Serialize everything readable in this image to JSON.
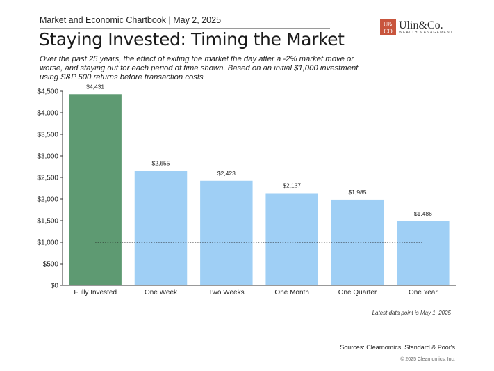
{
  "header": {
    "label": "Market and Economic Chartbook | May 2, 2025",
    "logo_mark_top": "U&",
    "logo_mark_bottom": "CO",
    "logo_name": "Ulin&Co.",
    "logo_sub": "WEALTH MANAGEMENT"
  },
  "chart_data": {
    "type": "bar",
    "title": "Staying Invested: Timing the Market",
    "subtitle": "Over the past 25 years, the effect of exiting the market the day after a -2% market move or worse, and staying out for each period of time shown. Based on an initial $1,000 investment using S&P 500 returns before transaction costs",
    "categories": [
      "Fully Invested",
      "One Week",
      "Two Weeks",
      "One Month",
      "One Quarter",
      "One Year"
    ],
    "values": [
      4431,
      2655,
      2423,
      2137,
      1985,
      1486
    ],
    "value_labels": [
      "$4,431",
      "$2,655",
      "$2,423",
      "$2,137",
      "$1,985",
      "$1,486"
    ],
    "colors": [
      "#5e9a72",
      "#9fcff5",
      "#9fcff5",
      "#9fcff5",
      "#9fcff5",
      "#9fcff5"
    ],
    "ylim": [
      0,
      4500
    ],
    "yticks": [
      0,
      500,
      1000,
      1500,
      2000,
      2500,
      3000,
      3500,
      4000,
      4500
    ],
    "ytick_labels": [
      "$0",
      "$500",
      "$1,000",
      "$1,500",
      "$2,000",
      "$2,500",
      "$3,000",
      "$3,500",
      "$4,000",
      "$4,500"
    ],
    "reference_line": 1000,
    "xlabel": "",
    "ylabel": "",
    "grid": false,
    "legend": "none"
  },
  "footer": {
    "note": "Latest data point is May 1, 2025",
    "sources": "Sources: Clearnomics, Standard & Poor's",
    "copyright": "© 2025 Clearnomics, Inc."
  }
}
